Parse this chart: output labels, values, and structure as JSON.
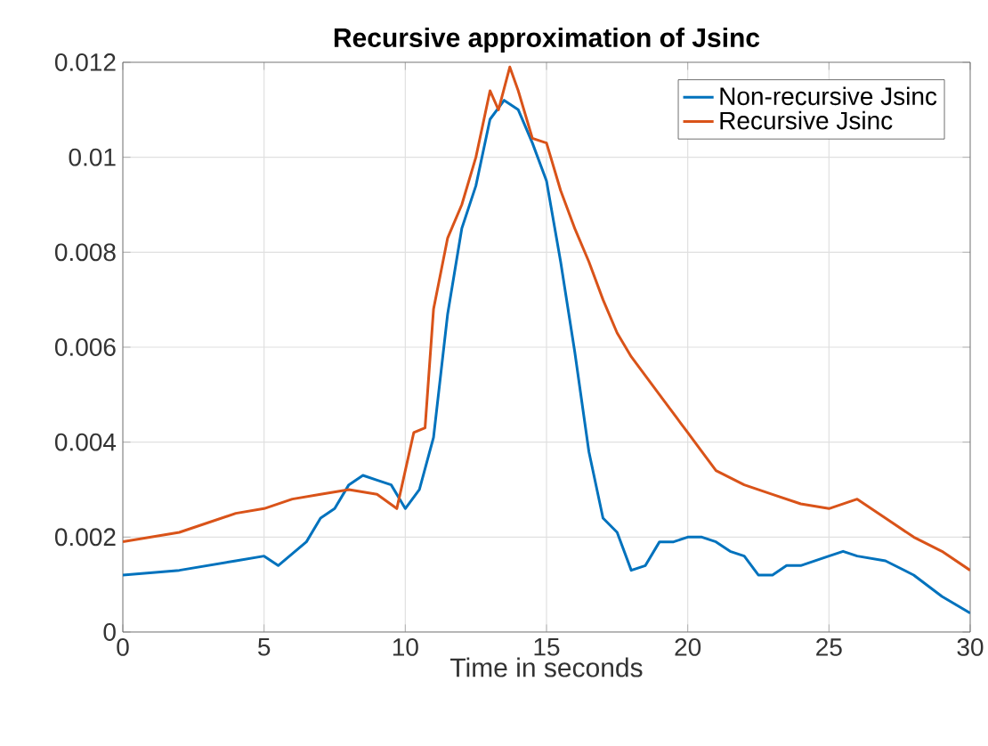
{
  "chart_data": {
    "type": "line",
    "title": "Recursive approximation of Jsinc",
    "xlabel": "Time in seconds",
    "xlim": [
      0,
      30
    ],
    "ylim": [
      0,
      0.012
    ],
    "xticks": [
      0,
      5,
      10,
      15,
      20,
      25,
      30
    ],
    "yticks": [
      0,
      0.002,
      0.004,
      0.006,
      0.008,
      0.01,
      0.012
    ],
    "grid": true,
    "legend": "top right",
    "marker": "none",
    "line_style": "solid",
    "series": [
      {
        "name": "Non-recursive Jsinc",
        "color": "#0072bd",
        "x": [
          0,
          2,
          4,
          5,
          5.5,
          6.5,
          7,
          7.5,
          8,
          8.5,
          9,
          9.5,
          10,
          10.5,
          11,
          11.5,
          12,
          12.5,
          13,
          13.5,
          14,
          14.5,
          15,
          15.5,
          16,
          16.5,
          17,
          17.5,
          18,
          18.5,
          19,
          19.5,
          20,
          20.5,
          21,
          21.5,
          22,
          22.5,
          23,
          23.5,
          24,
          25,
          25.5,
          26,
          27,
          28,
          29,
          30
        ],
        "values": [
          0.0012,
          0.0013,
          0.0015,
          0.0016,
          0.0014,
          0.0019,
          0.0024,
          0.0026,
          0.0031,
          0.0033,
          0.0032,
          0.0031,
          0.0026,
          0.003,
          0.0041,
          0.0067,
          0.0085,
          0.0094,
          0.0108,
          0.0112,
          0.011,
          0.0103,
          0.0095,
          0.0078,
          0.0059,
          0.0038,
          0.0024,
          0.0021,
          0.0013,
          0.0014,
          0.0019,
          0.0019,
          0.002,
          0.002,
          0.0019,
          0.0017,
          0.0016,
          0.0012,
          0.0012,
          0.0014,
          0.0014,
          0.0016,
          0.0017,
          0.0016,
          0.0015,
          0.0012,
          0.00075,
          0.0004
        ]
      },
      {
        "name": "Recursive Jsinc",
        "color": "#d95319",
        "x": [
          0,
          2,
          4,
          5,
          6,
          7,
          8,
          9,
          9.7,
          10,
          10.3,
          10.7,
          11,
          11.5,
          12,
          12.5,
          13,
          13.3,
          13.7,
          14,
          14.5,
          15,
          15.5,
          16,
          16.5,
          17,
          17.5,
          18,
          19,
          20,
          21,
          22,
          23,
          24,
          25,
          26,
          27,
          28,
          29,
          30
        ],
        "values": [
          0.0019,
          0.0021,
          0.0025,
          0.0026,
          0.0028,
          0.0029,
          0.003,
          0.0029,
          0.0026,
          0.0034,
          0.0042,
          0.0043,
          0.0068,
          0.0083,
          0.009,
          0.01,
          0.0114,
          0.011,
          0.0119,
          0.0114,
          0.0104,
          0.0103,
          0.0093,
          0.0085,
          0.0078,
          0.007,
          0.0063,
          0.0058,
          0.005,
          0.0042,
          0.0034,
          0.0031,
          0.0029,
          0.0027,
          0.0026,
          0.0028,
          0.0024,
          0.002,
          0.0017,
          0.0013
        ]
      }
    ]
  }
}
